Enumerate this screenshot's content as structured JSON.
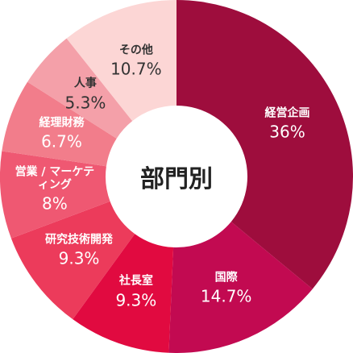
{
  "chart_data": {
    "type": "donut",
    "title": "部門別",
    "categories": [
      "経営企画",
      "国際",
      "社長室",
      "研究技術開発",
      "営業 / マーケティング",
      "経理財務",
      "人事",
      "その他"
    ],
    "values": [
      36,
      14.7,
      9.3,
      9.3,
      8,
      6.7,
      5.3,
      10.7
    ],
    "value_labels": [
      "36%",
      "14.7%",
      "9.3%",
      "9.3%",
      "8%",
      "6.7%",
      "5.3%",
      "10.7%"
    ],
    "colors": [
      "#9e0d3d",
      "#c20a51",
      "#e10a40",
      "#ec3b5b",
      "#ef5872",
      "#f27d8b",
      "#f4a0a9",
      "#fcd6d5"
    ]
  }
}
